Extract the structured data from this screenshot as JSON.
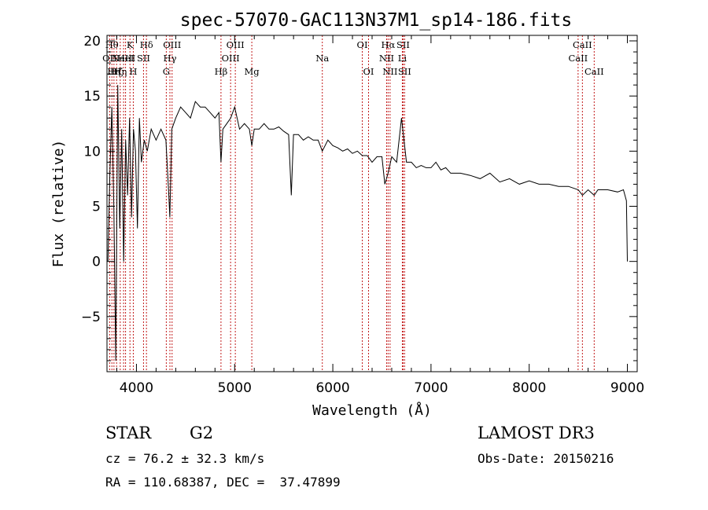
{
  "chart_data": {
    "type": "line",
    "title": "spec-57070-GAC113N37M1_sp14-186.fits",
    "xlabel": "Wavelength (Å)",
    "ylabel": "Flux (relative)",
    "xlim": [
      3700,
      9100
    ],
    "ylim": [
      -10,
      20.5
    ],
    "xticks": [
      {
        "value": 4000,
        "label": "4000"
      },
      {
        "value": 5000,
        "label": "5000"
      },
      {
        "value": 6000,
        "label": "6000"
      },
      {
        "value": 7000,
        "label": "7000"
      },
      {
        "value": 8000,
        "label": "8000"
      },
      {
        "value": 9000,
        "label": "9000"
      }
    ],
    "yticks": [
      {
        "value": -5,
        "label": "−5"
      },
      {
        "value": 0,
        "label": "0"
      },
      {
        "value": 5,
        "label": "5"
      },
      {
        "value": 10,
        "label": "10"
      },
      {
        "value": 15,
        "label": "15"
      },
      {
        "value": 20,
        "label": "20"
      }
    ],
    "series": [
      {
        "name": "spectrum",
        "x": [
          3710,
          3730,
          3750,
          3770,
          3790,
          3810,
          3830,
          3850,
          3870,
          3890,
          3910,
          3930,
          3950,
          3970,
          3990,
          4010,
          4030,
          4050,
          4080,
          4110,
          4150,
          4200,
          4250,
          4300,
          4330,
          4340,
          4360,
          4400,
          4450,
          4500,
          4550,
          4600,
          4650,
          4700,
          4750,
          4800,
          4840,
          4861,
          4880,
          4920,
          4960,
          5000,
          5050,
          5100,
          5150,
          5175,
          5200,
          5250,
          5300,
          5350,
          5400,
          5450,
          5500,
          5550,
          5577,
          5600,
          5650,
          5700,
          5750,
          5800,
          5850,
          5893,
          5950,
          6000,
          6050,
          6100,
          6150,
          6200,
          6250,
          6300,
          6350,
          6400,
          6450,
          6500,
          6530,
          6563,
          6600,
          6650,
          6700,
          6750,
          6800,
          6850,
          6900,
          6950,
          7000,
          7050,
          7100,
          7150,
          7200,
          7300,
          7400,
          7500,
          7600,
          7700,
          7800,
          7900,
          8000,
          8100,
          8200,
          8300,
          8400,
          8500,
          8542,
          8600,
          8662,
          8700,
          8800,
          8900,
          8960,
          8990,
          9000
        ],
        "y": [
          0,
          8,
          14,
          5,
          -9,
          16,
          3,
          12,
          0,
          11,
          6,
          13,
          4,
          12,
          10,
          3,
          13,
          9,
          11,
          10,
          12,
          11,
          12,
          11,
          6,
          4,
          12,
          13,
          14,
          13.5,
          13,
          14.5,
          14,
          14,
          13.5,
          13,
          13.5,
          9,
          12,
          12.5,
          13,
          14,
          12,
          12.5,
          12,
          10.5,
          12,
          12,
          12.5,
          12,
          12,
          12.2,
          11.8,
          11.5,
          6,
          11.5,
          11.5,
          11,
          11.3,
          11,
          11,
          10,
          11,
          10.5,
          10.3,
          10,
          10.2,
          9.8,
          10,
          9.6,
          9.6,
          9,
          9.5,
          9.5,
          7,
          8,
          9.5,
          9,
          13,
          9,
          9,
          8.5,
          8.7,
          8.5,
          8.5,
          9,
          8.3,
          8.5,
          8,
          8,
          7.8,
          7.5,
          8,
          7.2,
          7.5,
          7,
          7.3,
          7,
          7,
          6.8,
          6.8,
          6.5,
          6,
          6.5,
          6,
          6.5,
          6.5,
          6.3,
          6.5,
          5.5,
          0
        ]
      }
    ],
    "line_markers": [
      {
        "wavelength": 3727,
        "label": "OII",
        "row": 2
      },
      {
        "wavelength": 3750,
        "label": "Hθ",
        "row": 1
      },
      {
        "wavelength": 3771,
        "label": "Hη",
        "row": 3
      },
      {
        "wavelength": 3798,
        "label": "Hζ",
        "row": 3
      },
      {
        "wavelength": 3835,
        "label": "Hη",
        "row": 3
      },
      {
        "wavelength": 3869,
        "label": "NeIII",
        "row": 2
      },
      {
        "wavelength": 3889,
        "label": "HeI",
        "row": 2
      },
      {
        "wavelength": 3934,
        "label": "K",
        "row": 1
      },
      {
        "wavelength": 3968,
        "label": "H",
        "row": 3
      },
      {
        "wavelength": 4072,
        "label": "SII",
        "row": 2
      },
      {
        "wavelength": 4102,
        "label": "Hδ",
        "row": 1
      },
      {
        "wavelength": 4304,
        "label": "G",
        "row": 3
      },
      {
        "wavelength": 4341,
        "label": "Hγ",
        "row": 2
      },
      {
        "wavelength": 4363,
        "label": "OIII",
        "row": 1
      },
      {
        "wavelength": 4861,
        "label": "Hβ",
        "row": 3
      },
      {
        "wavelength": 4959,
        "label": "OIII",
        "row": 2
      },
      {
        "wavelength": 5007,
        "label": "OIII",
        "row": 1
      },
      {
        "wavelength": 5175,
        "label": "Mg",
        "row": 3
      },
      {
        "wavelength": 5893,
        "label": "Na",
        "row": 2
      },
      {
        "wavelength": 6300,
        "label": "OI",
        "row": 1
      },
      {
        "wavelength": 6364,
        "label": "OI",
        "row": 3
      },
      {
        "wavelength": 6548,
        "label": "NII",
        "row": 2
      },
      {
        "wavelength": 6563,
        "label": "Hα",
        "row": 1
      },
      {
        "wavelength": 6583,
        "label": "NII",
        "row": 3
      },
      {
        "wavelength": 6708,
        "label": "Li",
        "row": 2
      },
      {
        "wavelength": 6716,
        "label": "SII",
        "row": 1
      },
      {
        "wavelength": 6731,
        "label": "SII",
        "row": 3
      },
      {
        "wavelength": 8498,
        "label": "CaII",
        "row": 2
      },
      {
        "wavelength": 8542,
        "label": "CaII",
        "row": 1
      },
      {
        "wavelength": 8662,
        "label": "CaII",
        "row": 3
      }
    ]
  },
  "info": {
    "class": "STAR",
    "subclass": "G2",
    "survey": "LAMOST DR3",
    "cz": "cz = 76.2 ± 32.3 km/s",
    "obs_date": "Obs-Date: 20150216",
    "coords": "RA = 110.68387, DEC =  37.47899"
  }
}
